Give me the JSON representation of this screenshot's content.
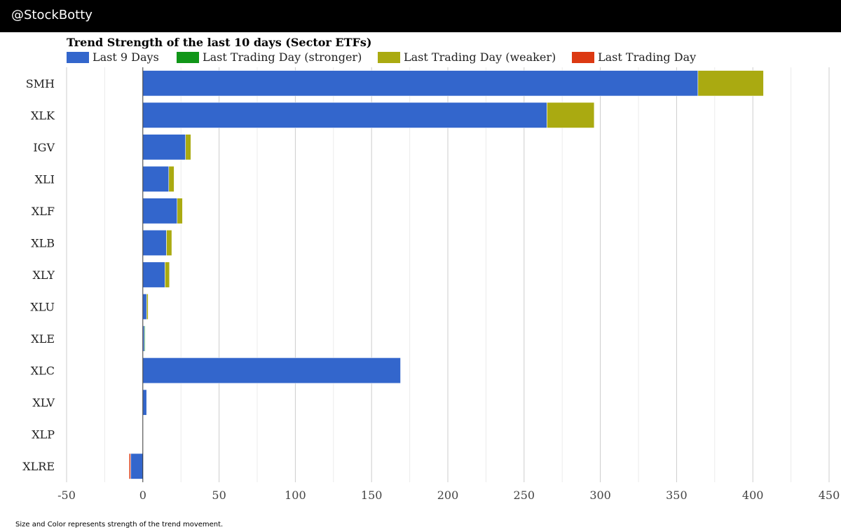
{
  "header": {
    "brand": "@StockBotty"
  },
  "footnote": "Size and Color represents strength of the trend movement.",
  "colors": {
    "header_bg": "#000000",
    "last9": "#3366cc",
    "stronger": "#109618",
    "weaker": "#aaaa11",
    "last_day": "#dc3912",
    "grid": "#cccccc",
    "minor_grid": "#ebebeb"
  },
  "chart_data": {
    "type": "bar",
    "orientation": "horizontal",
    "stacked": true,
    "title": "Trend Strength of the last 10 days (Sector ETFs)",
    "legend_position": "top",
    "categories": [
      "SMH",
      "XLK",
      "IGV",
      "XLI",
      "XLF",
      "XLB",
      "XLY",
      "XLU",
      "XLE",
      "XLC",
      "XLV",
      "XLP",
      "XLRE"
    ],
    "series": [
      {
        "name": "Last 9 Days",
        "color": "#3366cc",
        "values": [
          364,
          265,
          28,
          17,
          22.5,
          15.5,
          14.5,
          2.5,
          1,
          169,
          2.5,
          0,
          -8
        ]
      },
      {
        "name": "Last Trading Day (stronger)",
        "color": "#109618",
        "values": [
          0,
          0,
          0,
          0,
          0,
          0,
          0,
          0,
          0.5,
          0,
          0,
          0,
          0
        ]
      },
      {
        "name": "Last Trading Day (weaker)",
        "color": "#aaaa11",
        "values": [
          43,
          31,
          3.5,
          3.5,
          3.5,
          3.5,
          3,
          1,
          0,
          0,
          0,
          0,
          0
        ]
      },
      {
        "name": "Last Trading Day",
        "color": "#dc3912",
        "values": [
          0,
          0,
          0,
          0,
          0,
          0,
          0,
          0,
          0,
          0,
          0,
          0,
          -1
        ]
      }
    ],
    "xlim": [
      -50,
      450
    ],
    "xticks": [
      -50,
      0,
      50,
      100,
      150,
      200,
      250,
      300,
      350,
      400,
      450
    ],
    "grid": true
  }
}
